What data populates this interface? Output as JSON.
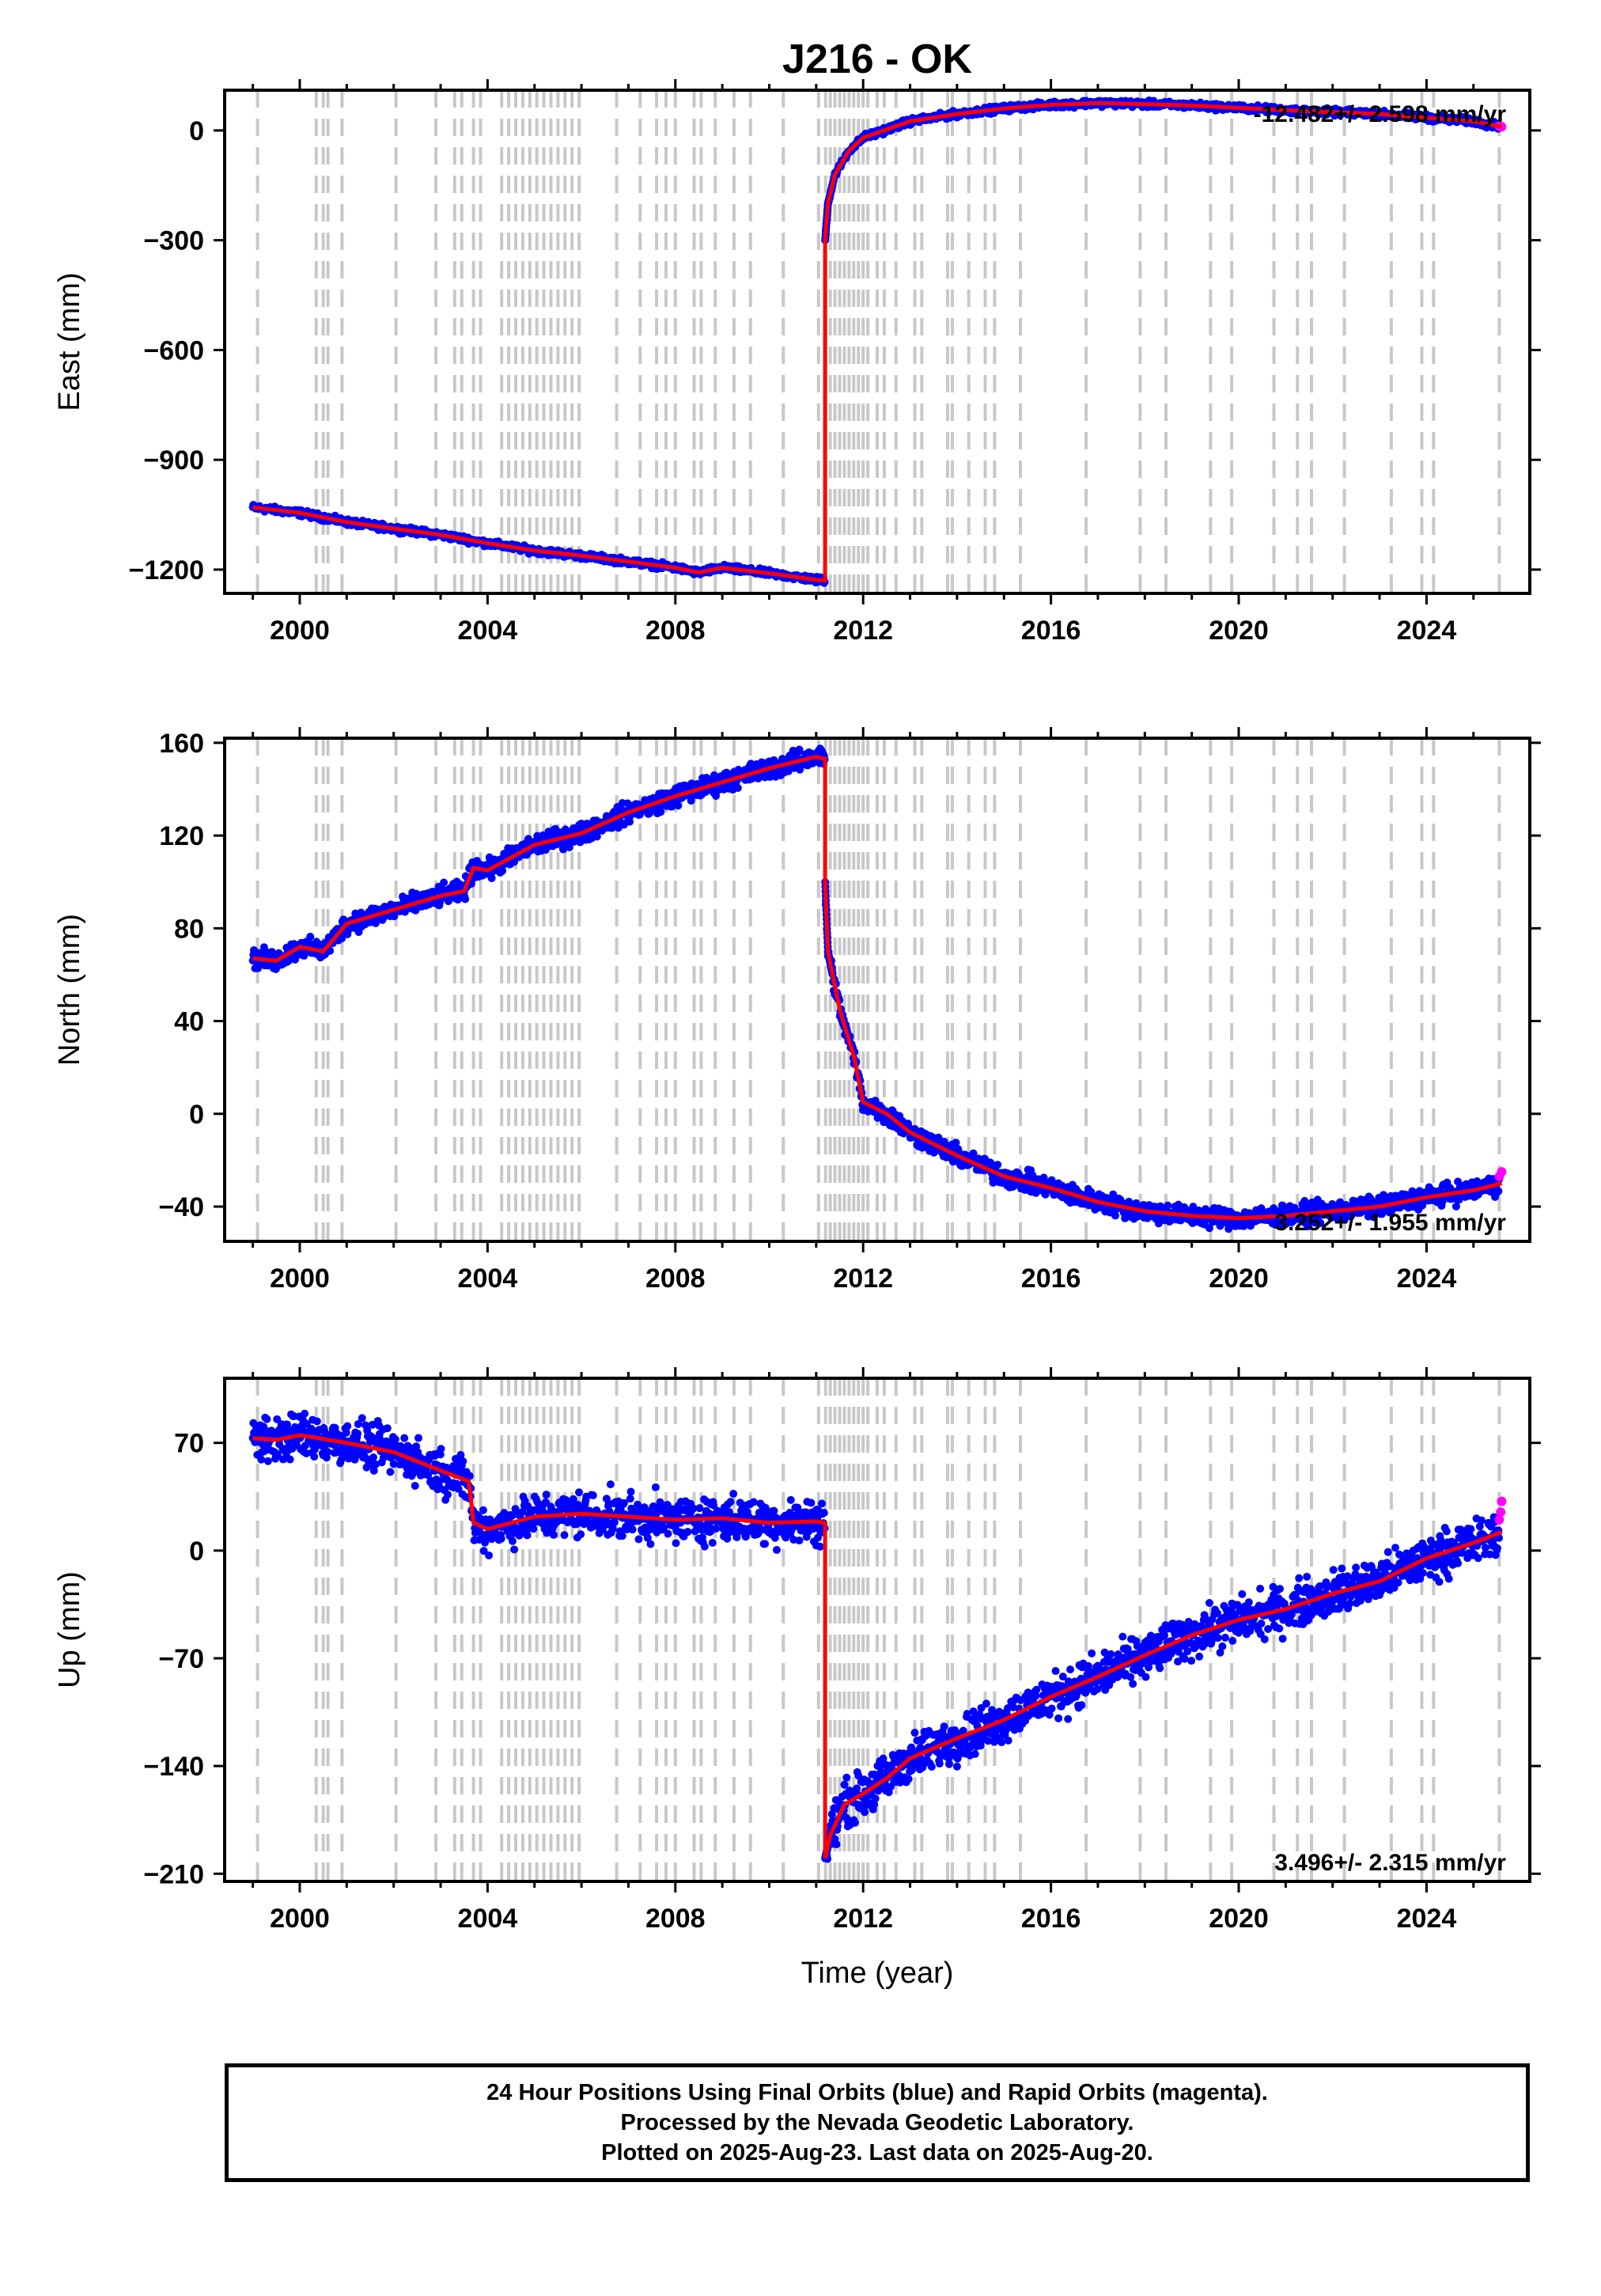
{
  "colors": {
    "final": "#0000ff",
    "rapid": "#ff00ff",
    "model": "#ff0000",
    "eq_line": "#c8c8c8",
    "axis": "#000000"
  },
  "chart_data": [
    {
      "type": "scatter",
      "title": "J216 - OK",
      "ylabel": "East (mm)",
      "xlabel": "",
      "xlim": [
        1998.4,
        2026.2
      ],
      "ylim": [
        -1265,
        110
      ],
      "yticks": [
        0,
        -300,
        -600,
        -900,
        -1200
      ],
      "ytick_labels": [
        "0",
        "−300",
        "−600",
        "−900",
        "−1200"
      ],
      "xticks": [
        2000,
        2004,
        2008,
        2012,
        2016,
        2020,
        2024
      ],
      "rate_text": "-12.482+/- 2.598 mm/yr",
      "rate_pos": "top-right",
      "model_points": [
        [
          1999.0,
          -1030
        ],
        [
          2000.0,
          -1045
        ],
        [
          2001.0,
          -1070
        ],
        [
          2002.0,
          -1088
        ],
        [
          2003.0,
          -1105
        ],
        [
          2004.0,
          -1128
        ],
        [
          2005.0,
          -1148
        ],
        [
          2006.0,
          -1162
        ],
        [
          2007.0,
          -1178
        ],
        [
          2008.0,
          -1195
        ],
        [
          2008.5,
          -1208
        ],
        [
          2009.0,
          -1195
        ],
        [
          2010.0,
          -1210
        ],
        [
          2011.0,
          -1228
        ],
        [
          2011.19,
          -1230
        ],
        [
          2011.19,
          -300
        ],
        [
          2011.25,
          -200
        ],
        [
          2011.4,
          -120
        ],
        [
          2011.7,
          -55
        ],
        [
          2012.0,
          -20
        ],
        [
          2013.0,
          25
        ],
        [
          2014.0,
          45
        ],
        [
          2015.0,
          60
        ],
        [
          2016.0,
          70
        ],
        [
          2017.0,
          75
        ],
        [
          2018.0,
          72
        ],
        [
          2019.0,
          68
        ],
        [
          2020.0,
          62
        ],
        [
          2021.0,
          55
        ],
        [
          2022.0,
          50
        ],
        [
          2023.0,
          45
        ],
        [
          2024.0,
          35
        ],
        [
          2025.0,
          25
        ],
        [
          2025.6,
          10
        ]
      ],
      "noise_mm": 6,
      "rapid_points": [
        [
          2025.55,
          12
        ],
        [
          2025.6,
          10
        ]
      ]
    },
    {
      "type": "scatter",
      "ylabel": "North (mm)",
      "xlabel": "",
      "xlim": [
        1998.4,
        2026.2
      ],
      "ylim": [
        -55,
        162
      ],
      "yticks": [
        160,
        120,
        80,
        40,
        0,
        -40
      ],
      "ytick_labels": [
        "160",
        "120",
        "80",
        "40",
        "0",
        "−40"
      ],
      "xticks": [
        2000,
        2004,
        2008,
        2012,
        2016,
        2020,
        2024
      ],
      "rate_text": "3.252+/- 1.955 mm/yr",
      "rate_pos": "bottom-right",
      "model_points": [
        [
          1999.0,
          67
        ],
        [
          1999.5,
          66
        ],
        [
          2000.0,
          72
        ],
        [
          2000.5,
          70
        ],
        [
          2001.0,
          82
        ],
        [
          2002.0,
          88
        ],
        [
          2003.0,
          94
        ],
        [
          2003.5,
          96
        ],
        [
          2003.7,
          106
        ],
        [
          2004.0,
          105
        ],
        [
          2005.0,
          116
        ],
        [
          2006.0,
          121
        ],
        [
          2007.0,
          130
        ],
        [
          2008.0,
          137
        ],
        [
          2009.0,
          143
        ],
        [
          2010.0,
          149
        ],
        [
          2011.0,
          154
        ],
        [
          2011.19,
          153
        ],
        [
          2011.19,
          100
        ],
        [
          2011.25,
          70
        ],
        [
          2011.5,
          45
        ],
        [
          2011.8,
          25
        ],
        [
          2012.0,
          5
        ],
        [
          2012.5,
          0
        ],
        [
          2013.0,
          -8
        ],
        [
          2014.0,
          -18
        ],
        [
          2015.0,
          -27
        ],
        [
          2016.0,
          -32
        ],
        [
          2017.0,
          -38
        ],
        [
          2018.0,
          -42
        ],
        [
          2019.0,
          -44
        ],
        [
          2020.0,
          -45
        ],
        [
          2021.0,
          -44
        ],
        [
          2022.0,
          -42
        ],
        [
          2023.0,
          -40
        ],
        [
          2024.0,
          -36
        ],
        [
          2025.0,
          -33
        ],
        [
          2025.6,
          -30
        ]
      ],
      "noise_mm": 3,
      "rapid_points": [
        [
          2025.55,
          -27
        ],
        [
          2025.6,
          -25
        ]
      ]
    },
    {
      "type": "scatter",
      "ylabel": "Up (mm)",
      "xlabel": "Time (year)",
      "xlim": [
        1998.4,
        2026.2
      ],
      "ylim": [
        -215,
        112
      ],
      "yticks": [
        70,
        0,
        -70,
        -140,
        -210
      ],
      "ytick_labels": [
        "70",
        "0",
        "−70",
        "−140",
        "−210"
      ],
      "xticks": [
        2000,
        2004,
        2008,
        2012,
        2016,
        2020,
        2024
      ],
      "rate_text": "3.496+/- 2.315 mm/yr",
      "rate_pos": "bottom-right",
      "model_points": [
        [
          1999.0,
          73
        ],
        [
          1999.5,
          72
        ],
        [
          2000.0,
          75
        ],
        [
          2001.0,
          70
        ],
        [
          2002.0,
          64
        ],
        [
          2003.0,
          52
        ],
        [
          2003.6,
          45
        ],
        [
          2003.7,
          18
        ],
        [
          2004.0,
          14
        ],
        [
          2005.0,
          22
        ],
        [
          2006.0,
          24
        ],
        [
          2007.0,
          22
        ],
        [
          2008.0,
          20
        ],
        [
          2009.0,
          21
        ],
        [
          2010.0,
          18
        ],
        [
          2011.0,
          19
        ],
        [
          2011.19,
          18
        ],
        [
          2011.19,
          -200
        ],
        [
          2011.3,
          -185
        ],
        [
          2011.6,
          -165
        ],
        [
          2012.0,
          -158
        ],
        [
          2012.5,
          -148
        ],
        [
          2013.0,
          -135
        ],
        [
          2014.0,
          -122
        ],
        [
          2015.0,
          -110
        ],
        [
          2016.0,
          -95
        ],
        [
          2017.0,
          -82
        ],
        [
          2018.0,
          -68
        ],
        [
          2019.0,
          -55
        ],
        [
          2020.0,
          -45
        ],
        [
          2021.0,
          -38
        ],
        [
          2022.0,
          -28
        ],
        [
          2023.0,
          -20
        ],
        [
          2024.0,
          -5
        ],
        [
          2025.0,
          5
        ],
        [
          2025.6,
          12
        ]
      ],
      "noise_mm": 10,
      "rapid_points": [
        [
          2025.55,
          20
        ],
        [
          2025.6,
          32
        ],
        [
          2025.58,
          25
        ]
      ]
    }
  ],
  "x_tick_labels": [
    "2000",
    "2004",
    "2008",
    "2012",
    "2016",
    "2020",
    "2024"
  ],
  "equipment_lines": [
    1999.1,
    2000.35,
    2000.5,
    2000.6,
    2000.9,
    2002.05,
    2002.9,
    2003.3,
    2003.45,
    2003.7,
    2003.85,
    2004.3,
    2004.45,
    2004.6,
    2004.75,
    2004.9,
    2005.05,
    2005.2,
    2005.35,
    2005.5,
    2005.65,
    2005.8,
    2005.95,
    2006.75,
    2007.25,
    2007.6,
    2007.8,
    2008.0,
    2008.4,
    2008.55,
    2008.85,
    2009.25,
    2009.6,
    2010.3,
    2011.05,
    2011.2,
    2011.3,
    2011.4,
    2011.5,
    2011.6,
    2011.7,
    2011.8,
    2011.9,
    2012.0,
    2012.1,
    2012.3,
    2012.45,
    2012.7,
    2013.1,
    2013.25,
    2013.8,
    2013.9,
    2014.25,
    2014.6,
    2014.8,
    2015.35,
    2016.75,
    2017.9,
    2018.45,
    2019.4,
    2019.85,
    2020.75,
    2021.25,
    2021.55,
    2022.25,
    2023.25,
    2023.9,
    2024.15,
    2025.55
  ],
  "footer": {
    "line1": "24 Hour Positions Using Final Orbits (blue) and Rapid Orbits (magenta).",
    "line2": "Processed by the Nevada Geodetic Laboratory.",
    "line3": "Plotted on 2025-Aug-23. Last data on 2025-Aug-20."
  }
}
